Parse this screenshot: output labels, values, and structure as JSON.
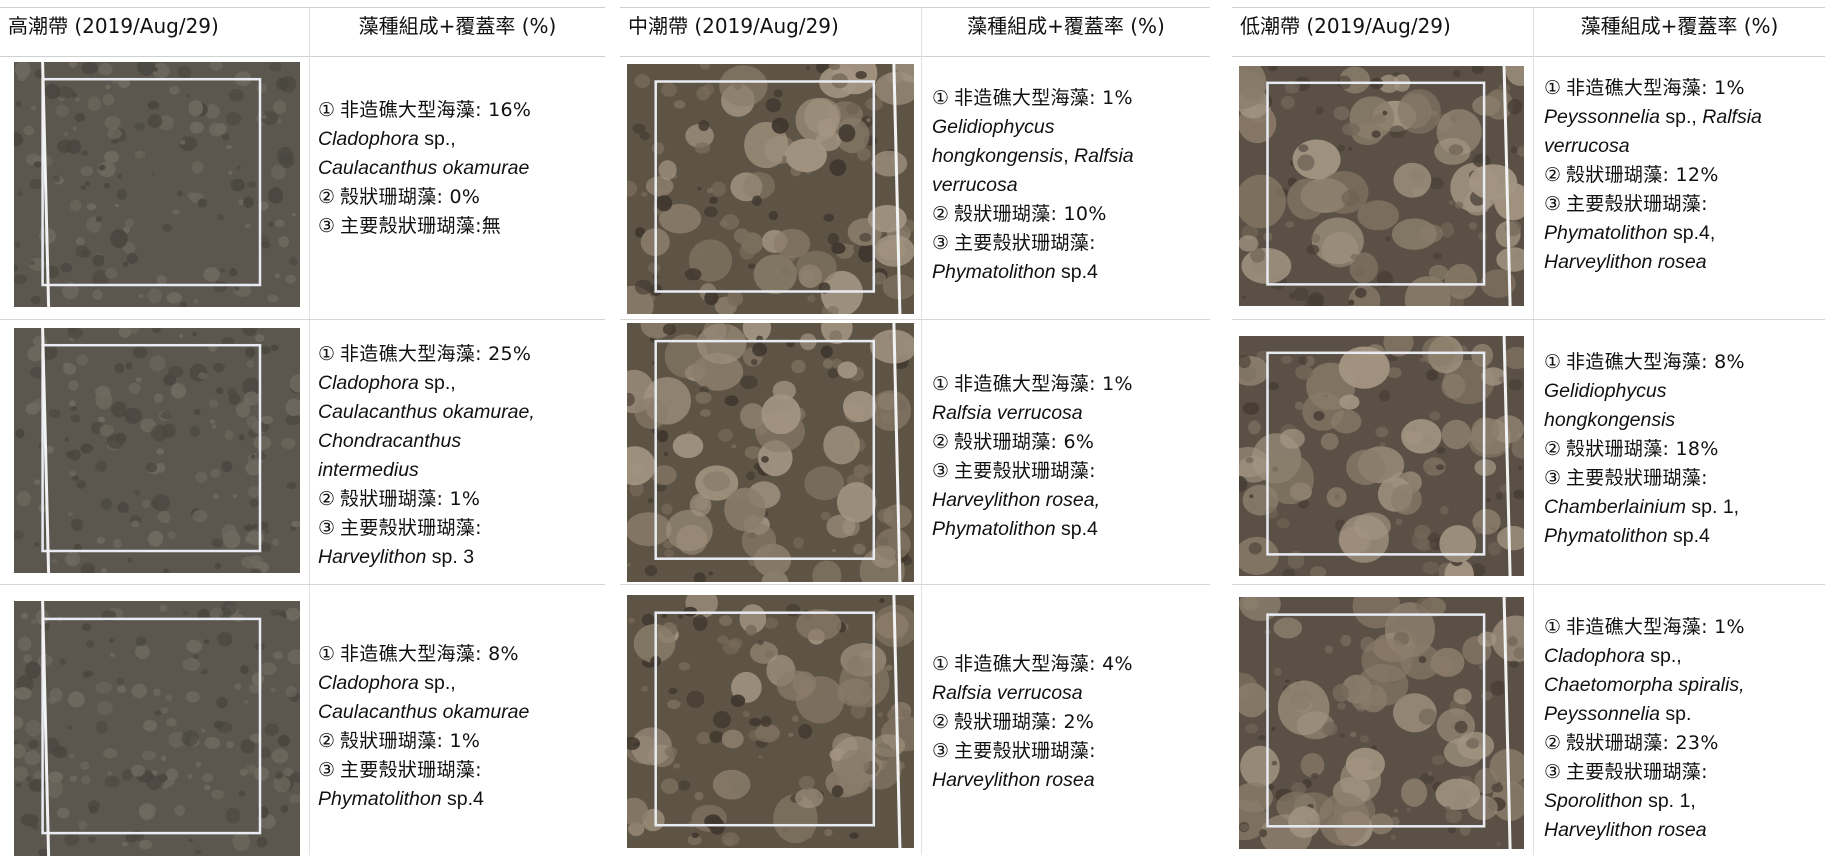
{
  "panels": [
    {
      "zone_title": "高潮帶 (2019/Aug/29)",
      "comp_title": "藻種組成+覆蓋率 (%)",
      "rows": [
        {
          "lines": [
            {
              "n": "①",
              "t": "非造礁大型海藻: 16%"
            },
            {
              "i": "Cladophora",
              "t2": " sp.,"
            },
            {
              "i": "Caulacanthus okamurae"
            },
            {
              "n": "②",
              "t": "殼狀珊瑚藻: 0%"
            },
            {
              "n": "③",
              "t": "主要殼狀珊瑚藻:無"
            }
          ]
        },
        {
          "lines": [
            {
              "n": "①",
              "t": "非造礁大型海藻: 25%"
            },
            {
              "i": "Cladophora",
              "t2": " sp.,"
            },
            {
              "i": "Caulacanthus okamurae,"
            },
            {
              "i": "Chondracanthus"
            },
            {
              "i": "intermedius"
            },
            {
              "n": "②",
              "t": "殼狀珊瑚藻: 1%"
            },
            {
              "n": "③",
              "t": "主要殼狀珊瑚藻:"
            },
            {
              "i": "Harveylithon",
              "t2": " sp. 3"
            }
          ]
        },
        {
          "lines": [
            {
              "n": "①",
              "t": "非造礁大型海藻: 8%"
            },
            {
              "i": "Cladophora",
              "t2": " sp.,"
            },
            {
              "i": "Caulacanthus okamurae"
            },
            {
              "n": "②",
              "t": "殼狀珊瑚藻: 1%"
            },
            {
              "n": "③",
              "t": "主要殼狀珊瑚藻:"
            },
            {
              "i": "Phymatolithon",
              "t2": " sp.4"
            }
          ]
        }
      ]
    },
    {
      "zone_title": "中潮帶 (2019/Aug/29)",
      "comp_title": "藻種組成+覆蓋率 (%)",
      "rows": [
        {
          "lines": [
            {
              "n": "①",
              "t": "非造礁大型海藻: 1%"
            },
            {
              "i": "Gelidiophycus"
            },
            {
              "i": "hongkongensis",
              "t2": ", ",
              "i2": "Ralfsia"
            },
            {
              "i": "verrucosa"
            },
            {
              "n": "②",
              "t": "殼狀珊瑚藻: 10%"
            },
            {
              "n": "③",
              "t": "主要殼狀珊瑚藻:"
            },
            {
              "i": "Phymatolithon",
              "t2": " sp.4"
            }
          ]
        },
        {
          "lines": [
            {
              "n": "①",
              "t": "非造礁大型海藻: 1%"
            },
            {
              "i": "Ralfsia verrucosa"
            },
            {
              "n": "②",
              "t": "殼狀珊瑚藻: 6%"
            },
            {
              "n": "③",
              "t": "主要殼狀珊瑚藻:"
            },
            {
              "i": "Harveylithon rosea,"
            },
            {
              "i": "Phymatolithon",
              "t2": " sp.4"
            }
          ]
        },
        {
          "lines": [
            {
              "n": "①",
              "t": "非造礁大型海藻: 4%"
            },
            {
              "i": "Ralfsia verrucosa"
            },
            {
              "n": "②",
              "t": "殼狀珊瑚藻: 2%"
            },
            {
              "n": "③",
              "t": "主要殼狀珊瑚藻:"
            },
            {
              "i": "Harveylithon rosea"
            }
          ]
        }
      ]
    },
    {
      "zone_title": "低潮帶 (2019/Aug/29)",
      "comp_title": "藻種組成+覆蓋率 (%)",
      "rows": [
        {
          "lines": [
            {
              "n": "①",
              "t": "非造礁大型海藻: 1%"
            },
            {
              "i": "Peyssonnelia",
              "t2": " sp., ",
              "i2": "Ralfsia"
            },
            {
              "i": "verrucosa"
            },
            {
              "n": "②",
              "t": "殼狀珊瑚藻: 12%"
            },
            {
              "n": "③",
              "t": "主要殼狀珊瑚藻:"
            },
            {
              "i": "Phymatolithon",
              "t2": " sp.4,"
            },
            {
              "i": "Harveylithon rosea"
            }
          ]
        },
        {
          "lines": [
            {
              "n": "①",
              "t": "非造礁大型海藻: 8%"
            },
            {
              "i": "Gelidiophycus"
            },
            {
              "i": "hongkongensis"
            },
            {
              "n": "②",
              "t": "殼狀珊瑚藻: 18%"
            },
            {
              "n": "③",
              "t": "主要殼狀珊瑚藻:"
            },
            {
              "i": "Chamberlainium",
              "t2": " sp. 1,"
            },
            {
              "i": "Phymatolithon",
              "t2": " sp.4"
            }
          ]
        },
        {
          "lines": [
            {
              "n": "①",
              "t": "非造礁大型海藻: 1%"
            },
            {
              "i": "Cladophora",
              "t2": " sp.,"
            },
            {
              "i": "Chaetomorpha spiralis,"
            },
            {
              "i": "Peyssonnelia",
              "t2": " sp."
            },
            {
              "n": "②",
              "t": "殼狀珊瑚藻: 23%"
            },
            {
              "n": "③",
              "t": "主要殼狀珊瑚藻:"
            },
            {
              "i": "Sporolithon",
              "t2": " sp. 1,"
            },
            {
              "i": "Harveylithon rosea"
            }
          ]
        }
      ]
    }
  ],
  "colors": {
    "high_zone_photo": [
      "#5b574f",
      "#6f6a60",
      "#4a463f"
    ],
    "mid_zone_photo": [
      "#5e5446",
      "#7a6d5c",
      "#3f372e"
    ],
    "low_zone_photo": [
      "#5a5045",
      "#74685a",
      "#463d34"
    ],
    "quadrat_frame": "#e8ecf2"
  }
}
